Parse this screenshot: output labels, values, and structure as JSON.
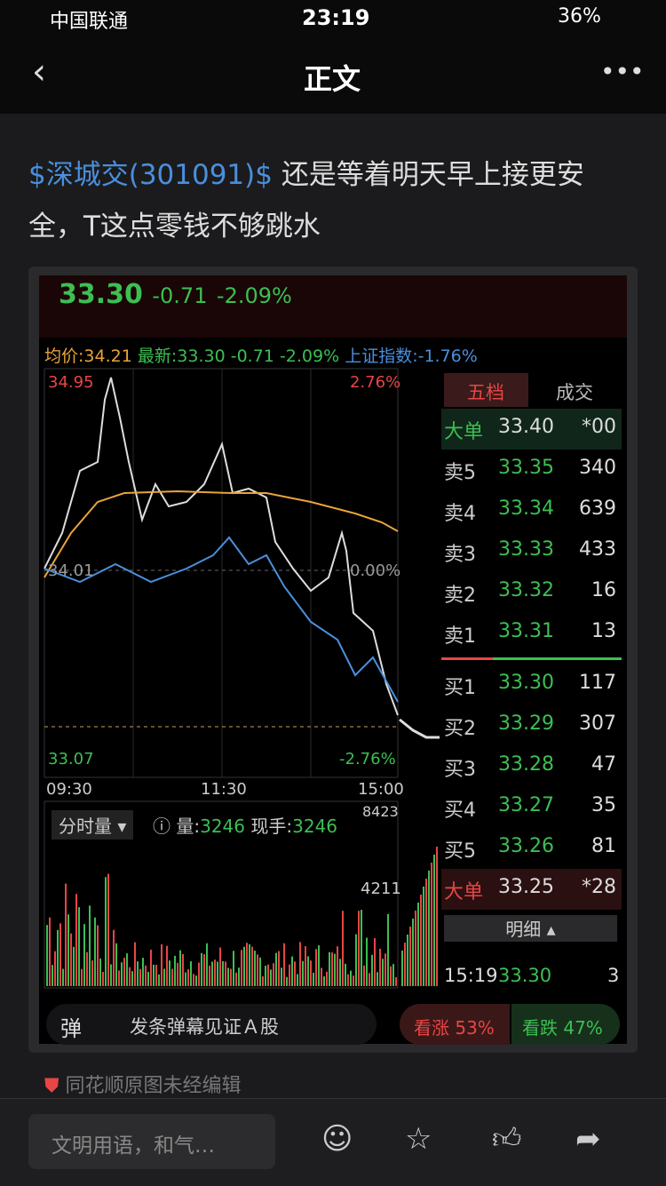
{
  "status_bar": {
    "carrier": "中国联通",
    "time": "23:19",
    "battery": "36%"
  },
  "nav": {
    "title": "正文"
  },
  "post": {
    "link": "$深城交(301091)$",
    "text": " 还是等着明天早上接更安全，T这点零钱不够跳水"
  },
  "quote": {
    "price": "33.30",
    "change": "-0.71",
    "percent": "-2.09%"
  },
  "info_bar": {
    "avg_label": "均价:",
    "avg": "34.21",
    "latest_label": "最新:",
    "latest": "33.30",
    "change": "-0.71",
    "percent": "-2.09%",
    "index_label": "上证指数:",
    "index": "-1.76%"
  },
  "price_axis": {
    "high": "34.95",
    "high_pct": "2.76%",
    "mid": "34.01",
    "mid_pct": "0.00%",
    "low": "33.07",
    "low_pct": "-2.76%"
  },
  "time_axis": [
    "09:30",
    "11:30",
    "15:00"
  ],
  "volume": {
    "selector": "分时量",
    "vol_label": "量:",
    "vol": "3246",
    "hand_label": "现手:",
    "hand": "3246",
    "max": "8423",
    "mid": "4211"
  },
  "order_book": {
    "tabs": [
      "五档",
      "成交"
    ],
    "rows": [
      [
        "大单",
        "33.40",
        "*00"
      ],
      [
        "卖5",
        "33.35",
        "340"
      ],
      [
        "卖4",
        "33.34",
        "639"
      ],
      [
        "卖3",
        "33.33",
        "433"
      ],
      [
        "卖2",
        "33.32",
        "16"
      ],
      [
        "卖1",
        "33.31",
        "13"
      ],
      [
        "买1",
        "33.30",
        "117"
      ],
      [
        "买2",
        "33.29",
        "307"
      ],
      [
        "买3",
        "33.28",
        "47"
      ],
      [
        "买4",
        "33.27",
        "35"
      ],
      [
        "买5",
        "33.26",
        "81"
      ],
      [
        "大单",
        "33.25",
        "*28"
      ]
    ],
    "detail": "明细",
    "trade": [
      "15:19",
      "33.30",
      "3"
    ]
  },
  "danmaku": {
    "icon": "弹",
    "prompt": "发条弹幕见证Ａ股",
    "rise": "看涨 53%",
    "fall": "看跌 47%"
  },
  "note": "同花顺原图未经编辑",
  "comment_bar": {
    "placeholder": "文明用语，和气…"
  }
}
